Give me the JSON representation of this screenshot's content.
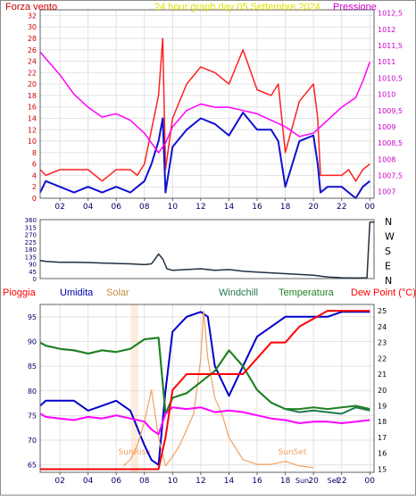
{
  "chart_data": [
    {
      "type": "line",
      "title": "24 hour graph day   05 Settembre 2024",
      "left_axis_label": "Forza vento",
      "right_axis_label": "Pressione",
      "x_ticks": [
        "02",
        "04",
        "06",
        "08",
        "10",
        "12",
        "14",
        "16",
        "18",
        "20",
        "22",
        "00"
      ],
      "y_left_ticks": [
        "0",
        "2",
        "4",
        "6",
        "8",
        "10",
        "12",
        "14",
        "16",
        "18",
        "20",
        "22",
        "24",
        "26",
        "28",
        "30",
        "32"
      ],
      "y_left_range": [
        0,
        33
      ],
      "y_right_ticks": [
        "1007",
        "1007,5",
        "1008",
        "1008,5",
        "1009",
        "1009,5",
        "1010",
        "1010,5",
        "1011",
        "1011,5",
        "1012",
        "1012,5"
      ],
      "y_right_range": [
        1006.8,
        1012.6
      ],
      "x_range_hours": [
        0.6,
        24.3
      ],
      "grid": true,
      "colors": {
        "gust": "#ff2020",
        "speed": "#1010d0",
        "pressure": "#ff00ff",
        "left_axis": "#cc0000",
        "right_axis": "#cc00cc",
        "title": "#e0e000"
      },
      "series": [
        {
          "name": "gust",
          "x": [
            0.6,
            1,
            2,
            3,
            4,
            5,
            6,
            7,
            7.5,
            8,
            8.5,
            9,
            9.3,
            9.5,
            10,
            11,
            12,
            13,
            14,
            15,
            16,
            17,
            17.5,
            18,
            19,
            20,
            20.3,
            20.5,
            21,
            22,
            22.5,
            23,
            23.5,
            24
          ],
          "values": [
            5,
            4,
            5,
            5,
            5,
            3,
            5,
            5,
            4,
            6,
            12,
            18,
            28,
            5,
            14,
            20,
            23,
            22,
            20,
            26,
            19,
            18,
            20,
            8,
            17,
            20,
            14,
            4,
            4,
            4,
            5,
            3,
            5,
            6
          ]
        },
        {
          "name": "speed",
          "x": [
            0.6,
            1,
            2,
            3,
            4,
            5,
            6,
            7,
            7.5,
            8,
            8.5,
            9,
            9.3,
            9.5,
            10,
            11,
            12,
            13,
            14,
            15,
            16,
            17,
            17.5,
            18,
            19,
            20,
            20.3,
            20.5,
            21,
            22,
            22.5,
            23,
            23.5,
            24
          ],
          "values": [
            1,
            3,
            2,
            1,
            2,
            1,
            2,
            1,
            2,
            3,
            6,
            10,
            14,
            1,
            9,
            12,
            14,
            13,
            11,
            15,
            12,
            12,
            10,
            2,
            10,
            11,
            6,
            1,
            2,
            2,
            1,
            0,
            2,
            3
          ]
        },
        {
          "name": "pressure",
          "x": [
            0.6,
            1,
            2,
            3,
            4,
            5,
            6,
            7,
            7.5,
            8,
            8.5,
            9,
            9.5,
            10,
            11,
            12,
            13,
            14,
            15,
            16,
            17,
            18,
            19,
            20,
            21,
            22,
            23,
            23.5,
            24
          ],
          "values": [
            1011.3,
            1011.1,
            1010.6,
            1010.0,
            1009.6,
            1009.3,
            1009.4,
            1009.2,
            1009.0,
            1008.8,
            1008.5,
            1008.2,
            1008.5,
            1009.0,
            1009.5,
            1009.7,
            1009.6,
            1009.6,
            1009.5,
            1009.4,
            1009.2,
            1009.0,
            1008.7,
            1008.8,
            1009.2,
            1009.6,
            1009.9,
            1010.4,
            1011.0
          ]
        }
      ]
    },
    {
      "type": "line",
      "y_left_ticks": [
        "0",
        "45",
        "90",
        "135",
        "180",
        "225",
        "270",
        "315",
        "360"
      ],
      "y_left_range": [
        0,
        360
      ],
      "y_right_labels": [
        "N",
        "W",
        "S",
        "E",
        "N"
      ],
      "x_range_hours": [
        0.6,
        24.3
      ],
      "colors": {
        "direction": "#203040"
      },
      "series": [
        {
          "name": "direction",
          "x": [
            0.6,
            1,
            2,
            3,
            4,
            5,
            6,
            7,
            8,
            8.5,
            9,
            9.3,
            9.6,
            10,
            11,
            12,
            13,
            14,
            15,
            16,
            17,
            18,
            19,
            20,
            21,
            22,
            23,
            23.8,
            24,
            24.3
          ],
          "values": [
            110,
            105,
            100,
            100,
            98,
            95,
            92,
            90,
            85,
            90,
            150,
            120,
            60,
            50,
            55,
            60,
            50,
            55,
            45,
            40,
            35,
            30,
            25,
            20,
            10,
            5,
            3,
            5,
            345,
            345
          ]
        }
      ]
    },
    {
      "type": "line",
      "legend": [
        "Pioggia",
        "Umidita",
        "Solar",
        "Windchill",
        "Temperatura",
        "Dew Point (°C)"
      ],
      "y_left_ticks": [
        "65",
        "70",
        "75",
        "80",
        "85",
        "90",
        "95"
      ],
      "y_left_range": [
        63.5,
        97.5
      ],
      "y_right_ticks": [
        "15",
        "16",
        "17",
        "18",
        "19",
        "20",
        "21",
        "22",
        "23",
        "24",
        "25"
      ],
      "y_right_range": [
        14.8,
        25.4
      ],
      "annotations": [
        "SunRise",
        "SunSet",
        "Sun",
        "Set"
      ],
      "x_range_hours": [
        0.6,
        24.3
      ],
      "colors": {
        "rain": "#ff0000",
        "humidity": "#0000cc",
        "solar": "#f0a060",
        "windchill": "#1e7a4e",
        "temperature": "#208020",
        "dewpoint": "#ff00ff"
      },
      "series": [
        {
          "name": "Umidita",
          "x": [
            0.6,
            1,
            2,
            3,
            4,
            5,
            6,
            7,
            8,
            8.5,
            9,
            9.5,
            10,
            11,
            12,
            12.5,
            13,
            14,
            15,
            16,
            17,
            18,
            19,
            20,
            21,
            22,
            23,
            24
          ],
          "values": [
            77,
            78,
            78,
            78,
            76,
            77,
            78,
            76,
            69,
            66,
            65,
            80,
            92,
            95,
            96,
            95,
            85,
            79,
            85,
            91,
            93,
            95,
            95,
            95,
            95,
            96,
            96,
            96
          ]
        },
        {
          "name": "Solar",
          "x": [
            6.5,
            7,
            7.5,
            8,
            8.5,
            9,
            9.5,
            10,
            10.5,
            11,
            11.5,
            12,
            12.2,
            12.5,
            13,
            13.5,
            14,
            15,
            16,
            17,
            18,
            19,
            20
          ],
          "values": [
            15.2,
            15.6,
            16.5,
            18,
            20,
            17,
            15.2,
            15.8,
            16.5,
            17.5,
            18.5,
            22,
            25,
            22,
            19.5,
            18.5,
            17,
            15.6,
            15.3,
            15.3,
            15.5,
            15.2,
            15.1
          ]
        },
        {
          "name": "Windchill",
          "x": [
            0.6,
            1,
            2,
            3,
            4,
            5,
            6,
            7,
            8,
            9,
            9.5,
            10,
            11,
            12,
            13,
            14,
            15,
            16,
            17,
            18,
            19,
            20,
            21,
            22,
            23,
            24
          ],
          "values": [
            23,
            22.8,
            22.6,
            22.5,
            22.3,
            22.5,
            22.4,
            22.6,
            23.2,
            23.3,
            18.5,
            19.5,
            19.8,
            20.5,
            21.2,
            22.5,
            21.5,
            20,
            19.2,
            18.8,
            18.6,
            18.7,
            18.6,
            18.5,
            18.9,
            18.7
          ]
        },
        {
          "name": "Temperatura",
          "x": [
            0.6,
            1,
            2,
            3,
            4,
            5,
            6,
            7,
            8,
            9,
            9.5,
            10,
            11,
            12,
            13,
            14,
            15,
            16,
            17,
            18,
            19,
            20,
            21,
            22,
            23,
            24
          ],
          "values": [
            23,
            22.8,
            22.6,
            22.5,
            22.3,
            22.5,
            22.4,
            22.6,
            23.2,
            23.3,
            18.5,
            19.5,
            19.8,
            20.5,
            21.2,
            22.5,
            21.5,
            20,
            19.2,
            18.8,
            18.8,
            18.9,
            18.8,
            18.9,
            19,
            18.8
          ]
        },
        {
          "name": "Dew Point (°C)",
          "x": [
            0.6,
            1,
            2,
            3,
            4,
            5,
            6,
            7,
            8,
            8.5,
            9,
            9.5,
            10,
            11,
            12,
            13,
            14,
            15,
            16,
            17,
            18,
            19,
            20,
            21,
            22,
            23,
            24
          ],
          "values": [
            18.5,
            18.3,
            18.2,
            18.1,
            18.3,
            18.2,
            18.4,
            18.2,
            18.0,
            17.5,
            17.2,
            18.5,
            18.9,
            18.8,
            18.9,
            18.6,
            18.7,
            18.6,
            18.4,
            18.2,
            18.1,
            17.9,
            18.0,
            18.0,
            17.9,
            18.0,
            18.1
          ]
        },
        {
          "name": "Pioggia",
          "x": [
            0.6,
            1,
            2,
            3,
            4,
            5,
            6,
            7,
            8,
            9,
            9.5,
            10,
            11,
            12,
            13,
            14,
            15,
            16,
            17,
            18,
            19,
            20,
            21,
            22,
            23,
            24
          ],
          "values": [
            15,
            15,
            15,
            15,
            15,
            15,
            15,
            15,
            15,
            15,
            17,
            20,
            21,
            21,
            21,
            21,
            21,
            22,
            23,
            23,
            24,
            24.5,
            25,
            25,
            25,
            25
          ]
        }
      ]
    }
  ]
}
